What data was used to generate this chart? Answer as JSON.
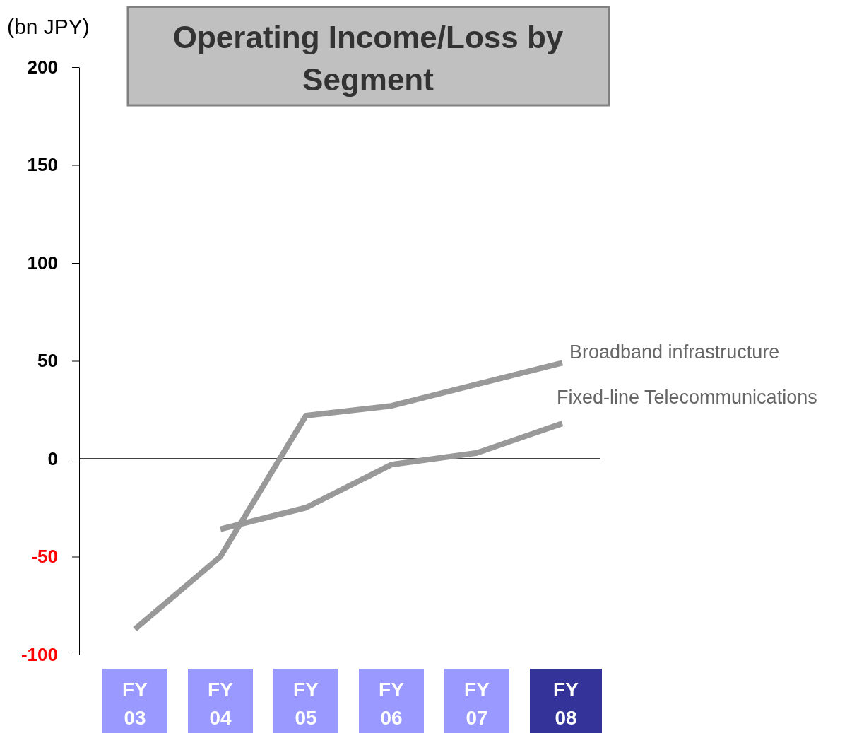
{
  "chart_data": {
    "type": "line",
    "title": "Operating Income/Loss by Segment",
    "ylabel": "(bn JPY)",
    "categories": [
      "FY 03",
      "FY 04",
      "FY 05",
      "FY 06",
      "FY 07",
      "FY 08"
    ],
    "series": [
      {
        "name": "Broadband infrastructure",
        "color": "#999999",
        "values": [
          -87,
          -50,
          22,
          27,
          38,
          49
        ]
      },
      {
        "name": "Fixed-line Telecommunications",
        "color": "#999999",
        "values": [
          null,
          -36,
          -25,
          -3,
          3,
          18
        ]
      }
    ],
    "ylim": [
      -100,
      200
    ],
    "yticks": [
      -100,
      -50,
      0,
      50,
      100,
      150,
      200
    ],
    "ref_lines": [
      {
        "axis": "y",
        "value": 0,
        "color": "#000000"
      }
    ],
    "legend": false,
    "marker": "none",
    "line_style": "solid"
  }
}
